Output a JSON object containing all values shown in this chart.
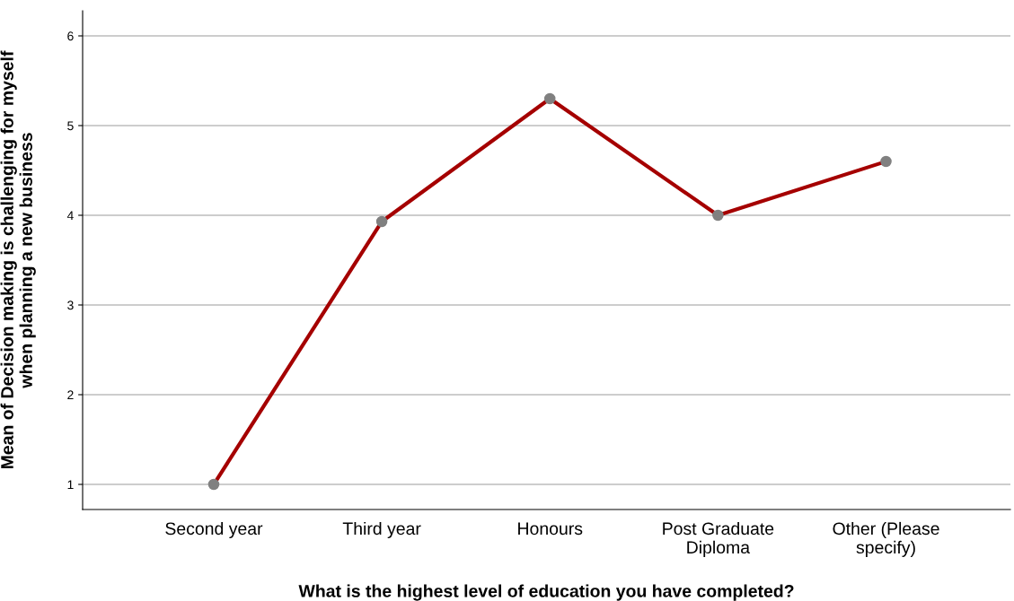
{
  "chart_data": {
    "type": "line",
    "xlabel": "What is the highest level of education you have completed?",
    "ylabel": "Mean of Decision making is challenging for myself\nwhen planning a new business",
    "categories": [
      "Second year",
      "Third year",
      "Honours",
      "Post Graduate\nDiploma",
      "Other (Please\nspecify)"
    ],
    "series": [
      {
        "color": "#a50000",
        "values": [
          1.0,
          3.93,
          5.3,
          4.0,
          4.6
        ]
      }
    ],
    "ylim": [
      0.72,
      6.28
    ],
    "yticks": [
      1,
      2,
      3,
      4,
      5,
      6
    ],
    "grid": "y",
    "marker": "circle",
    "line_style": "solid"
  }
}
